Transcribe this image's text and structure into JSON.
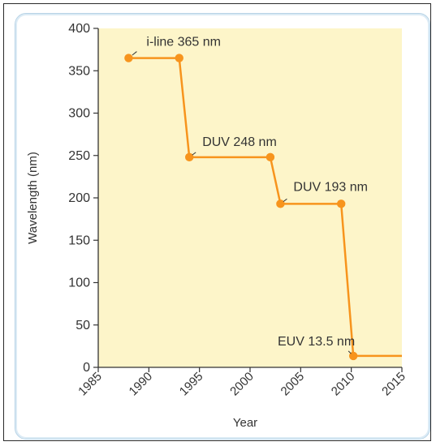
{
  "chart_data": {
    "type": "line",
    "xlabel": "Year",
    "ylabel": "Wavelength (nm)",
    "xlim": [
      1985,
      2015
    ],
    "ylim": [
      0,
      400
    ],
    "xticks": [
      "1985",
      "1990",
      "1995",
      "2000",
      "2005",
      "2010",
      "2015"
    ],
    "yticks": [
      "0",
      "50",
      "100",
      "150",
      "200",
      "250",
      "300",
      "350",
      "400"
    ],
    "grid": false,
    "colors": {
      "line": "#f7941d",
      "plot_bg": "#fdf5c9",
      "axis": "#333333"
    },
    "series": [
      {
        "x": [
          1988,
          1993,
          1994,
          2002,
          2003,
          2009,
          2010.2,
          2015
        ],
        "y": [
          365,
          365,
          248,
          248,
          193,
          193,
          13.5,
          13.5
        ],
        "markers": [
          true,
          true,
          true,
          true,
          true,
          true,
          true,
          false
        ]
      }
    ],
    "annotations": [
      {
        "text": "i-line 365 nm",
        "x": 1988,
        "y": 365
      },
      {
        "text": "DUV 248 nm",
        "x": 1994,
        "y": 248
      },
      {
        "text": "DUV 193 nm",
        "x": 2003,
        "y": 193
      },
      {
        "text": "EUV 13.5 nm",
        "x": 2010.2,
        "y": 13.5
      }
    ]
  }
}
